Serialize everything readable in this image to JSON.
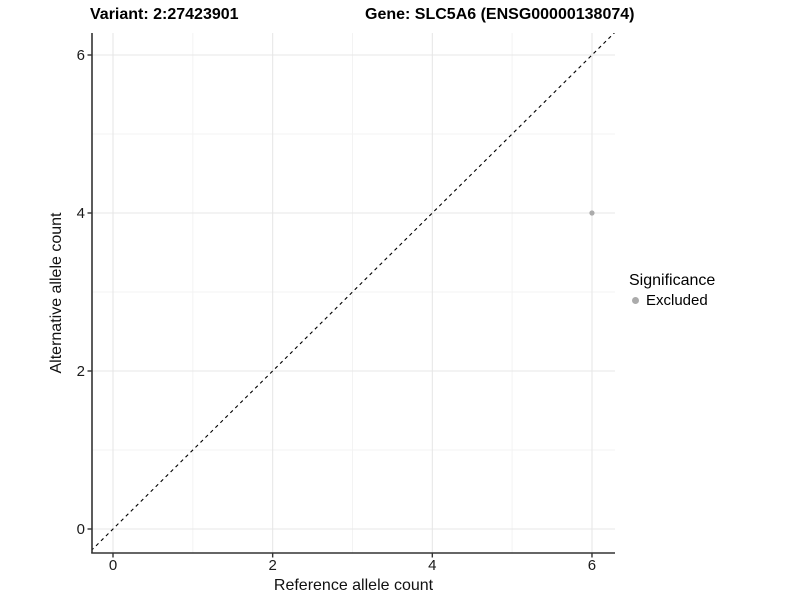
{
  "titles": {
    "variant": "Variant: 2:27423901",
    "gene": "Gene: SLC5A6 (ENSG00000138074)"
  },
  "axes": {
    "x_label": "Reference allele count",
    "y_label": "Alternative allele count"
  },
  "legend": {
    "title": "Significance",
    "entries": [
      {
        "label": "Excluded",
        "color": "#ABABAB"
      }
    ]
  },
  "colors": {
    "grid_major": "#E7E7E7",
    "grid_minor": "#F3F3F3",
    "axis": "#333333",
    "reference_line": "#000000",
    "point": "#ABABAB",
    "background": "#FFFFFF"
  },
  "chart_data": {
    "type": "scatter",
    "title": "Variant: 2:27423901 — Gene: SLC5A6 (ENSG00000138074)",
    "xlabel": "Reference allele count",
    "ylabel": "Alternative allele count",
    "xlim": [
      -0.3,
      6.3
    ],
    "ylim": [
      -0.3,
      6.3
    ],
    "x_ticks": [
      0,
      2,
      4,
      6
    ],
    "y_ticks": [
      0,
      2,
      4,
      6
    ],
    "x_minor_ticks": [
      1,
      3,
      5
    ],
    "y_minor_ticks": [
      1,
      3,
      5
    ],
    "grid": "major+minor",
    "legend_position": "right",
    "series": [
      {
        "name": "Excluded",
        "type": "scatter",
        "color": "#ABABAB",
        "points": [
          [
            6,
            4
          ]
        ]
      }
    ],
    "reference_line": {
      "kind": "identity y=x",
      "style": "dashed",
      "color": "#000000"
    }
  }
}
